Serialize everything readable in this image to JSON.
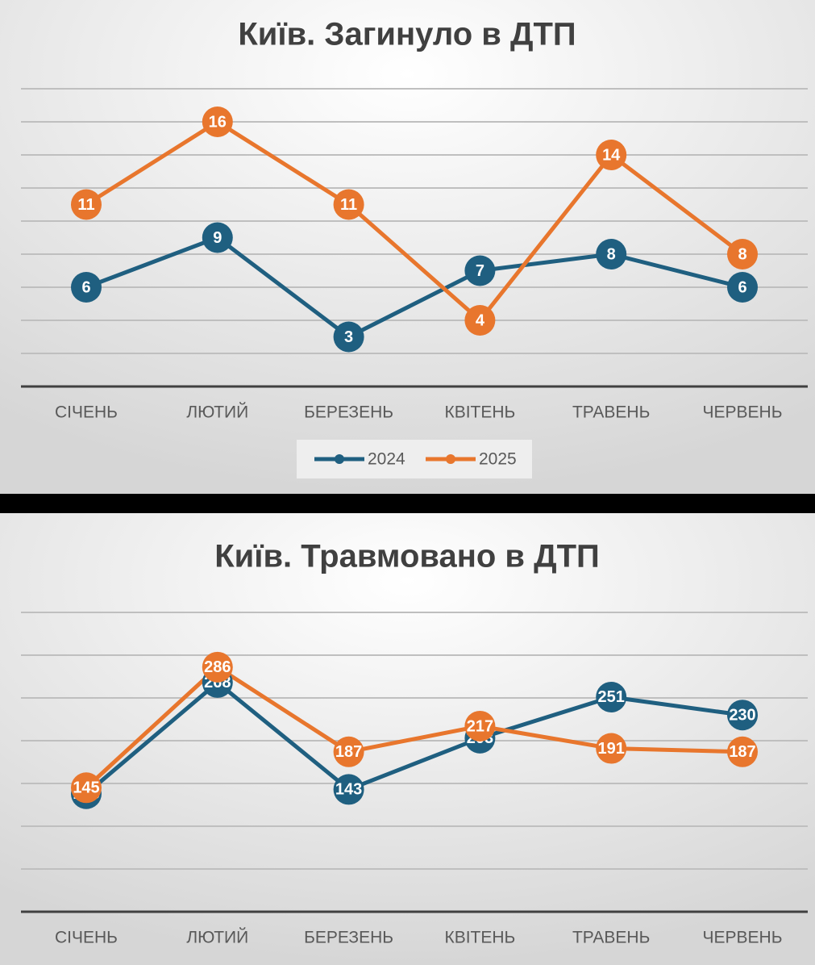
{
  "chart_data": [
    {
      "type": "line",
      "title": "Київ. Загинуло в ДТП",
      "categories": [
        "СІЧЕНЬ",
        "ЛЮТИЙ",
        "БЕРЕЗЕНЬ",
        "КВІТЕНЬ",
        "ТРАВЕНЬ",
        "ЧЕРВЕНЬ"
      ],
      "series": [
        {
          "name": "2024",
          "color": "#1f5f80",
          "values": [
            6,
            9,
            3,
            7,
            8,
            6
          ]
        },
        {
          "name": "2025",
          "color": "#e8762d",
          "values": [
            11,
            16,
            11,
            4,
            14,
            8
          ]
        }
      ],
      "ylim": [
        0,
        18
      ],
      "yticks": [
        0,
        2,
        4,
        6,
        8,
        10,
        12,
        14,
        16,
        18
      ],
      "grid": true,
      "legend": "bottom"
    },
    {
      "type": "line",
      "title": "Київ. Травмовано в ДТП",
      "categories": [
        "СІЧЕНЬ",
        "ЛЮТИЙ",
        "БЕРЕЗЕНЬ",
        "КВІТЕНЬ",
        "ТРАВЕНЬ",
        "ЧЕРВЕНЬ"
      ],
      "series": [
        {
          "color": "#1f5f80",
          "values": [
            138,
            268,
            143,
            203,
            251,
            230
          ]
        },
        {
          "color": "#e8762d",
          "values": [
            145,
            286,
            187,
            217,
            191,
            187
          ]
        }
      ],
      "ylim": [
        0,
        350
      ],
      "yticks": [
        0,
        50,
        100,
        150,
        200,
        250,
        300,
        350
      ],
      "grid": true
    }
  ]
}
